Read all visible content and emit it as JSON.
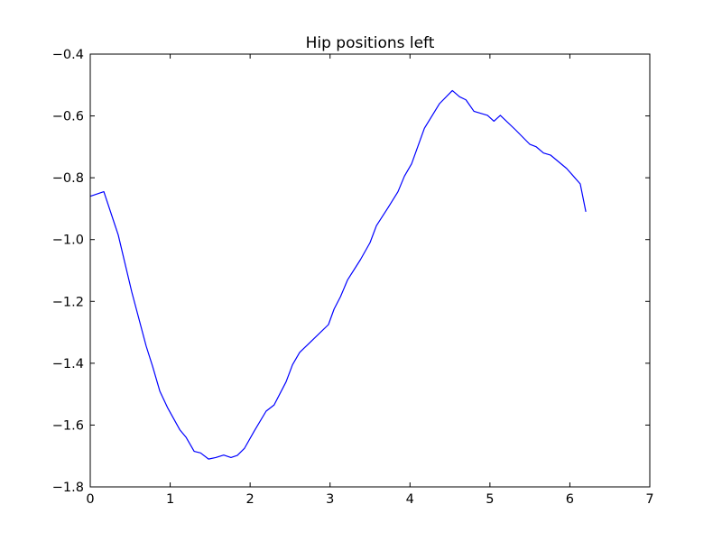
{
  "chart_data": {
    "type": "line",
    "title": "Hip positions left",
    "xlabel": "",
    "ylabel": "",
    "xlim": [
      0,
      7
    ],
    "ylim": [
      -1.8,
      -0.4
    ],
    "xticks": [
      "0",
      "1",
      "2",
      "3",
      "4",
      "5",
      "6",
      "7"
    ],
    "yticks": [
      "−0.4",
      "−0.6",
      "−0.8",
      "−1.0",
      "−1.2",
      "−1.4",
      "−1.6",
      "−1.8"
    ],
    "grid": false,
    "series": [
      {
        "color": "#0000ff",
        "x": [
          0.0,
          0.17,
          0.35,
          0.52,
          0.7,
          0.78,
          0.87,
          0.97,
          1.12,
          1.2,
          1.3,
          1.38,
          1.48,
          1.57,
          1.67,
          1.76,
          1.84,
          1.93,
          2.05,
          2.2,
          2.3,
          2.45,
          2.53,
          2.62,
          2.8,
          2.98,
          3.05,
          3.13,
          3.22,
          3.38,
          3.5,
          3.58,
          3.73,
          3.85,
          3.93,
          4.02,
          4.18,
          4.37,
          4.53,
          4.62,
          4.7,
          4.8,
          4.97,
          5.05,
          5.13,
          5.32,
          5.5,
          5.58,
          5.67,
          5.76,
          5.96,
          6.13,
          6.2
        ],
        "y": [
          -0.86,
          -0.845,
          -0.985,
          -1.17,
          -1.345,
          -1.41,
          -1.49,
          -1.545,
          -1.615,
          -1.64,
          -1.685,
          -1.69,
          -1.71,
          -1.705,
          -1.697,
          -1.705,
          -1.698,
          -1.675,
          -1.62,
          -1.555,
          -1.535,
          -1.46,
          -1.405,
          -1.365,
          -1.32,
          -1.275,
          -1.225,
          -1.185,
          -1.13,
          -1.065,
          -1.01,
          -0.955,
          -0.895,
          -0.845,
          -0.795,
          -0.755,
          -0.64,
          -0.56,
          -0.518,
          -0.538,
          -0.548,
          -0.585,
          -0.598,
          -0.617,
          -0.598,
          -0.645,
          -0.692,
          -0.7,
          -0.72,
          -0.727,
          -0.77,
          -0.82,
          -0.91
        ]
      }
    ]
  }
}
